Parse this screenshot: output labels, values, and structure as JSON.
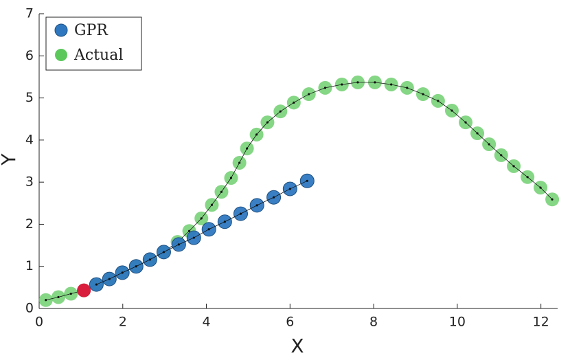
{
  "chart_data": {
    "type": "scatter",
    "xlabel": "X",
    "ylabel": "Y",
    "xlim": [
      0,
      12.4
    ],
    "ylim": [
      0,
      7
    ],
    "xticks": [
      0,
      2,
      4,
      6,
      8,
      10,
      12
    ],
    "yticks": [
      0,
      1,
      2,
      3,
      4,
      5,
      6,
      7
    ],
    "legend": "upper-left",
    "series": [
      {
        "name": "Actual",
        "color": "#5cc85c",
        "x": [
          0.16,
          0.46,
          0.76,
          1.07,
          1.37,
          1.68,
          1.99,
          2.32,
          2.65,
          2.98,
          3.31,
          3.59,
          3.88,
          4.13,
          4.36,
          4.59,
          4.79,
          4.97,
          5.2,
          5.46,
          5.77,
          6.09,
          6.45,
          6.84,
          7.24,
          7.62,
          8.03,
          8.42,
          8.8,
          9.18,
          9.54,
          9.87,
          10.2,
          10.48,
          10.76,
          11.05,
          11.35,
          11.68,
          11.99,
          12.27
        ],
        "values": [
          0.2,
          0.27,
          0.35,
          0.43,
          0.57,
          0.7,
          0.85,
          1.0,
          1.16,
          1.34,
          1.58,
          1.84,
          2.14,
          2.46,
          2.77,
          3.1,
          3.46,
          3.8,
          4.13,
          4.42,
          4.68,
          4.89,
          5.09,
          5.24,
          5.32,
          5.37,
          5.37,
          5.32,
          5.24,
          5.09,
          4.93,
          4.7,
          4.42,
          4.16,
          3.9,
          3.64,
          3.38,
          3.12,
          2.87,
          2.59
        ]
      },
      {
        "name": "GPR",
        "color": "#2f78c0",
        "x": [
          1.37,
          1.68,
          1.99,
          2.32,
          2.65,
          2.98,
          3.34,
          3.7,
          4.06,
          4.44,
          4.82,
          5.21,
          5.61,
          6.0,
          6.41
        ],
        "values": [
          0.57,
          0.7,
          0.85,
          1.0,
          1.16,
          1.34,
          1.52,
          1.68,
          1.88,
          2.06,
          2.25,
          2.45,
          2.64,
          2.84,
          3.03
        ]
      }
    ],
    "highlight_point": {
      "x": 1.07,
      "y": 0.43,
      "color": "#d81e3c"
    }
  }
}
